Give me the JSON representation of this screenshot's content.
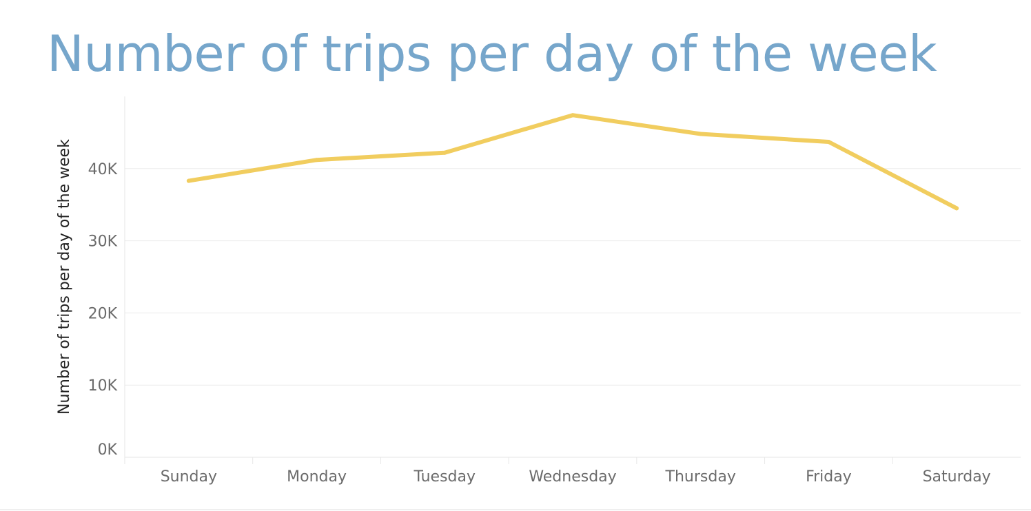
{
  "chart_data": {
    "type": "line",
    "title": "Number of trips per day of the week",
    "xlabel": "",
    "ylabel": "Number of trips per day of the week",
    "categories": [
      "Sunday",
      "Monday",
      "Tuesday",
      "Wednesday",
      "Thursday",
      "Friday",
      "Saturday"
    ],
    "series": [
      {
        "values": [
          38300,
          41200,
          42200,
          47400,
          44800,
          43700,
          34500
        ],
        "color": "#f1cd5f"
      }
    ],
    "ylim": [
      0,
      50000
    ],
    "yticks": [
      0,
      10000,
      20000,
      30000,
      40000
    ],
    "ytick_labels": [
      "0K",
      "10K",
      "20K",
      "30K",
      "40K"
    ],
    "grid": true,
    "legend": "none"
  }
}
